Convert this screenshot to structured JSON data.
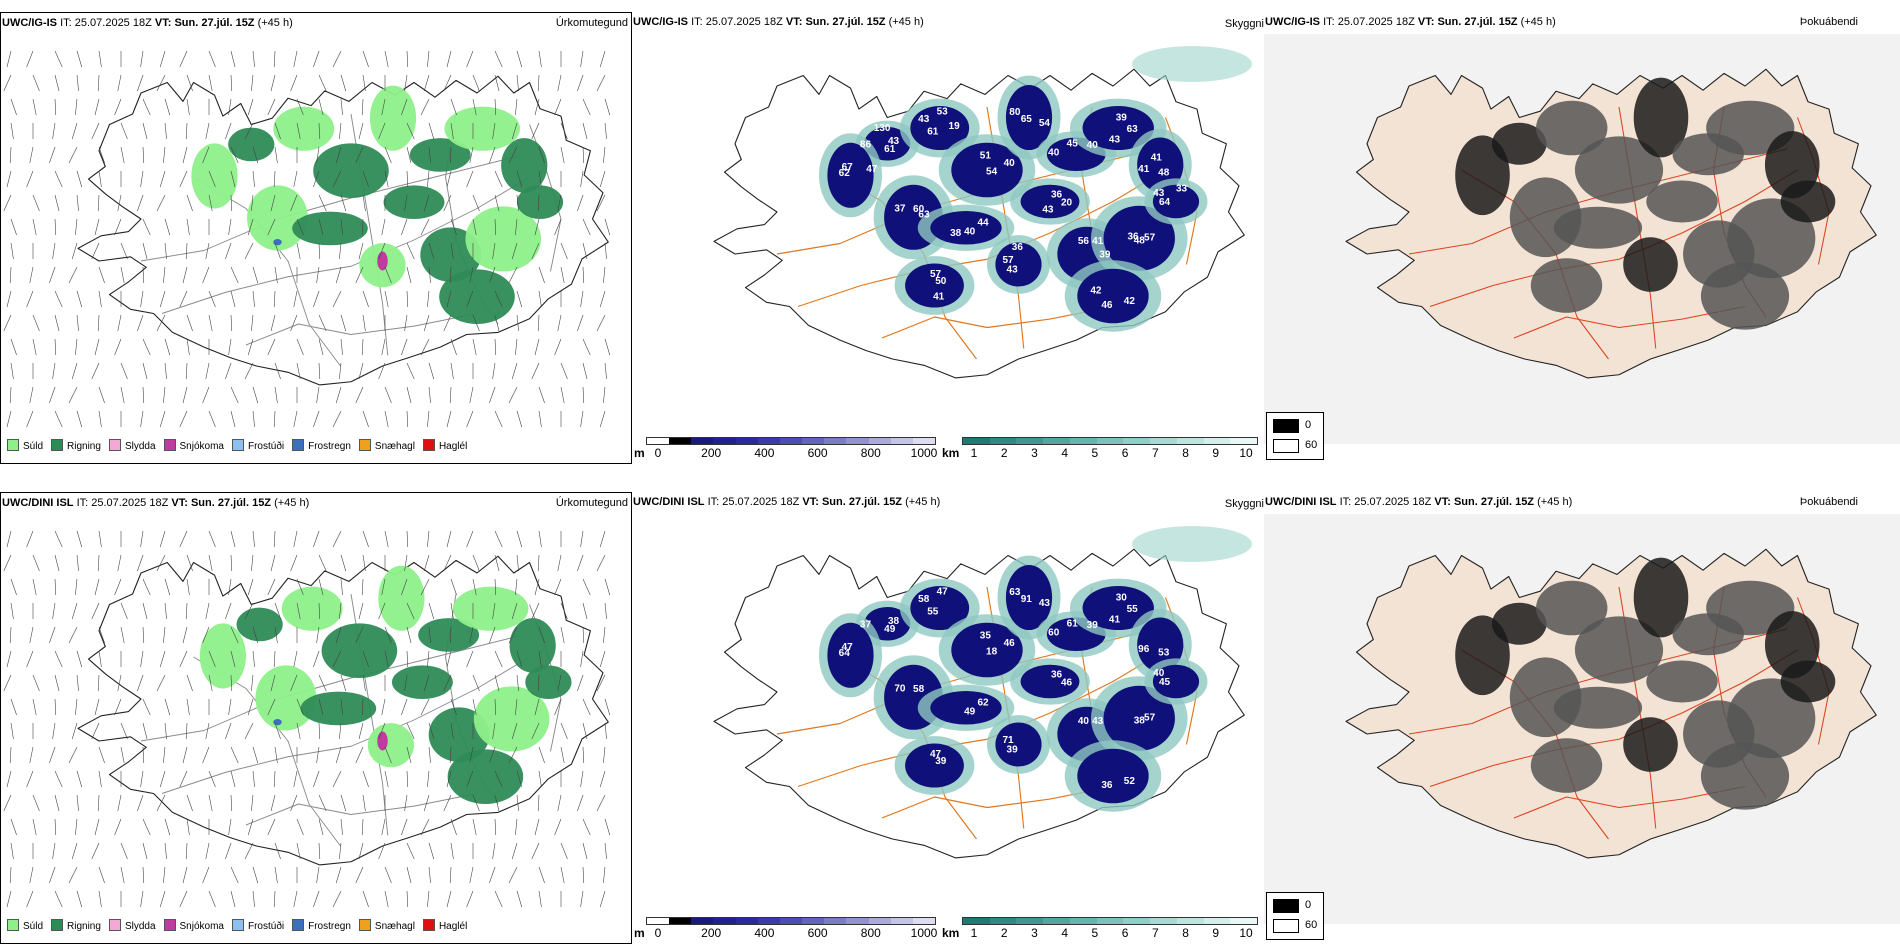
{
  "rows": [
    {
      "model_id": "UWC/IG-IS",
      "panels": {
        "precip": {
          "model": "UWC/IG-IS",
          "it_label": "IT:",
          "it_value": "25.07.2025 18Z",
          "vt_label": "VT:",
          "vt_value": "Sun. 27.júl. 15Z",
          "lead": "(+45 h)",
          "name": "Úrkomutegund"
        },
        "cloud": {
          "model": "UWC/IG-IS",
          "it_label": "IT:",
          "it_value": "25.07.2025 18Z",
          "vt_label": "VT:",
          "vt_value": "Sun. 27.júl. 15Z",
          "lead": "(+45 h)",
          "name": "Skyggni",
          "labels": [
            "43",
            "61",
            "51",
            "54",
            "40",
            "39",
            "48",
            "37",
            "44",
            "43",
            "56",
            "57",
            "64",
            "57",
            "42",
            "62",
            "36",
            "61",
            "43",
            "40",
            "65",
            "45",
            "63",
            "41",
            "60",
            "40",
            "57",
            "41",
            "48",
            "43",
            "50",
            "46",
            "67",
            "20",
            "86",
            "53",
            "54",
            "80",
            "40",
            "43",
            "41",
            "63",
            "38",
            "36",
            "39",
            "36",
            "33",
            "41",
            "42",
            "47",
            "43",
            "130",
            "19"
          ]
        },
        "fog": {
          "model": "UWC/IG-IS",
          "it_label": "IT:",
          "it_value": "25.07.2025 18Z",
          "vt_label": "VT:",
          "vt_value": "Sun. 27.júl. 15Z",
          "lead": "(+45 h)",
          "name": "Þokuábendi"
        }
      }
    },
    {
      "model_id": "UWC/DINI ISL",
      "panels": {
        "precip": {
          "model": "UWC/DINI ISL",
          "it_label": "IT:",
          "it_value": "25.07.2025 18Z",
          "vt_label": "VT:",
          "vt_value": "Sun. 27.júl. 15Z",
          "lead": "(+45 h)",
          "name": "Úrkomutegund"
        },
        "cloud": {
          "model": "UWC/DINI ISL",
          "it_label": "IT:",
          "it_value": "25.07.2025 18Z",
          "vt_label": "VT:",
          "vt_value": "Sun. 27.júl. 15Z",
          "lead": "(+45 h)",
          "name": "Skyggni",
          "labels": [
            "38",
            "55",
            "35",
            "43",
            "60",
            "30",
            "53",
            "70",
            "62",
            "39",
            "40",
            "57",
            "45",
            "47",
            "52",
            "64",
            "36",
            "49",
            "58",
            "46",
            "91",
            "61",
            "55",
            "96",
            "58",
            "49",
            "71",
            "43",
            "38",
            "40",
            "39",
            "36",
            "47",
            "46",
            "37",
            "47",
            "18",
            "63",
            "39",
            "41"
          ]
        },
        "fog": {
          "model": "UWC/DINI ISL",
          "it_label": "IT:",
          "it_value": "25.07.2025 18Z",
          "vt_label": "VT:",
          "vt_value": "Sun. 27.júl. 15Z",
          "lead": "(+45 h)",
          "name": "Þokuábendi"
        }
      }
    }
  ],
  "precip_legend": [
    {
      "label": "Súld",
      "color": "#8ef08a"
    },
    {
      "label": "Rigning",
      "color": "#2e8b57"
    },
    {
      "label": "Slydda",
      "color": "#f3a8d6"
    },
    {
      "label": "Snjókoma",
      "color": "#c03aa0"
    },
    {
      "label": "Frostúði",
      "color": "#8fbff0"
    },
    {
      "label": "Frostregn",
      "color": "#3d6fc0"
    },
    {
      "label": "Snæhagl",
      "color": "#f0a020"
    },
    {
      "label": "Haglél",
      "color": "#e01010"
    }
  ],
  "elev_bar": {
    "unit": "m",
    "ticks": [
      "0",
      "200",
      "400",
      "600",
      "800",
      "1000"
    ],
    "colors": [
      "#ffffff",
      "#000000",
      "#1a1a7a",
      "#22228f",
      "#2b2ba0",
      "#3a3aa8",
      "#4e4eb2",
      "#6464be",
      "#7b7bc8",
      "#9292d2",
      "#aaaadd",
      "#c4c4e8",
      "#dcdcf2"
    ]
  },
  "vis_bar": {
    "unit": "km",
    "ticks": [
      "1",
      "2",
      "3",
      "4",
      "5",
      "6",
      "7",
      "8",
      "9",
      "10"
    ],
    "colors": [
      "#1f7a72",
      "#2f8a82",
      "#3f9890",
      "#52a79e",
      "#66b5ac",
      "#7bc2ba",
      "#90cec7",
      "#a6dad3",
      "#bde5df",
      "#d3efeb",
      "#e8f7f5"
    ]
  },
  "fog_legend": {
    "items": [
      {
        "label": "0",
        "color": "#000000"
      },
      {
        "label": "60",
        "color": "#ffffff"
      }
    ]
  }
}
